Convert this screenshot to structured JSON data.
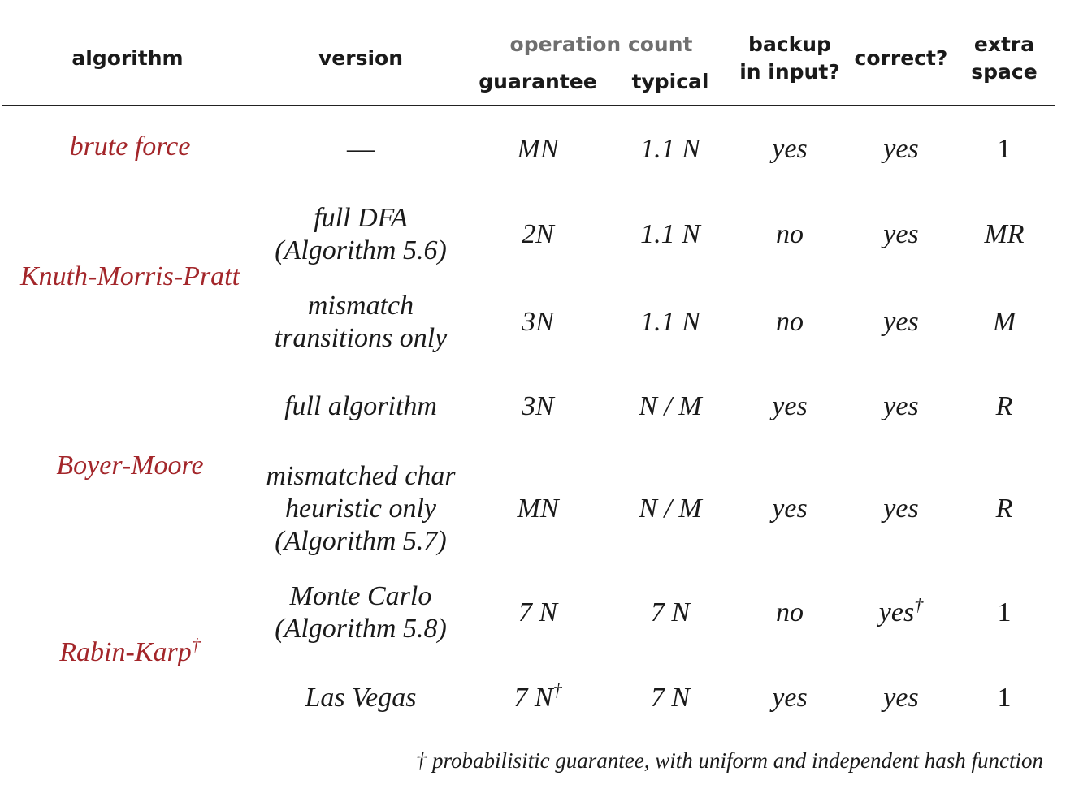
{
  "headers": {
    "algorithm": "algorithm",
    "version": "version",
    "operation_count": "operation count",
    "guarantee": "guarantee",
    "typical": "typical",
    "backup_line1": "backup",
    "backup_line2": "in input?",
    "correct": "correct?",
    "extra_line1": "extra",
    "extra_line2": "space"
  },
  "algorithms": {
    "brute_force": "brute force",
    "kmp": "Knuth-Morris-Pratt",
    "boyer_moore": "Boyer-Moore",
    "rabin_karp": "Rabin-Karp",
    "dagger": "†"
  },
  "rows": [
    {
      "version": "—",
      "guarantee": "MN",
      "typical": "1.1 N",
      "backup": "yes",
      "correct": "yes",
      "space": "1"
    },
    {
      "version": "full DFA\n(Algorithm 5.6)",
      "guarantee": "2N",
      "typical": "1.1 N",
      "backup": "no",
      "correct": "yes",
      "space": "MR"
    },
    {
      "version": "mismatch\ntransitions only",
      "guarantee": "3N",
      "typical": "1.1 N",
      "backup": "no",
      "correct": "yes",
      "space": "M"
    },
    {
      "version": "full algorithm",
      "guarantee": "3N",
      "typical": "N / M",
      "backup": "yes",
      "correct": "yes",
      "space": "R"
    },
    {
      "version": "mismatched char\nheuristic only\n(Algorithm 5.7)",
      "guarantee": "MN",
      "typical": "N / M",
      "backup": "yes",
      "correct": "yes",
      "space": "R"
    },
    {
      "version": "Monte Carlo\n(Algorithm 5.8)",
      "guarantee": "7 N",
      "typical": "7 N",
      "backup": "no",
      "correct": "yes",
      "space": "1"
    },
    {
      "version": "Las Vegas",
      "guarantee": "7 N",
      "typical": "7 N",
      "backup": "yes",
      "correct": "yes",
      "space": "1"
    }
  ],
  "footnote": "† probabilisitic guarantee, with uniform and independent hash function"
}
